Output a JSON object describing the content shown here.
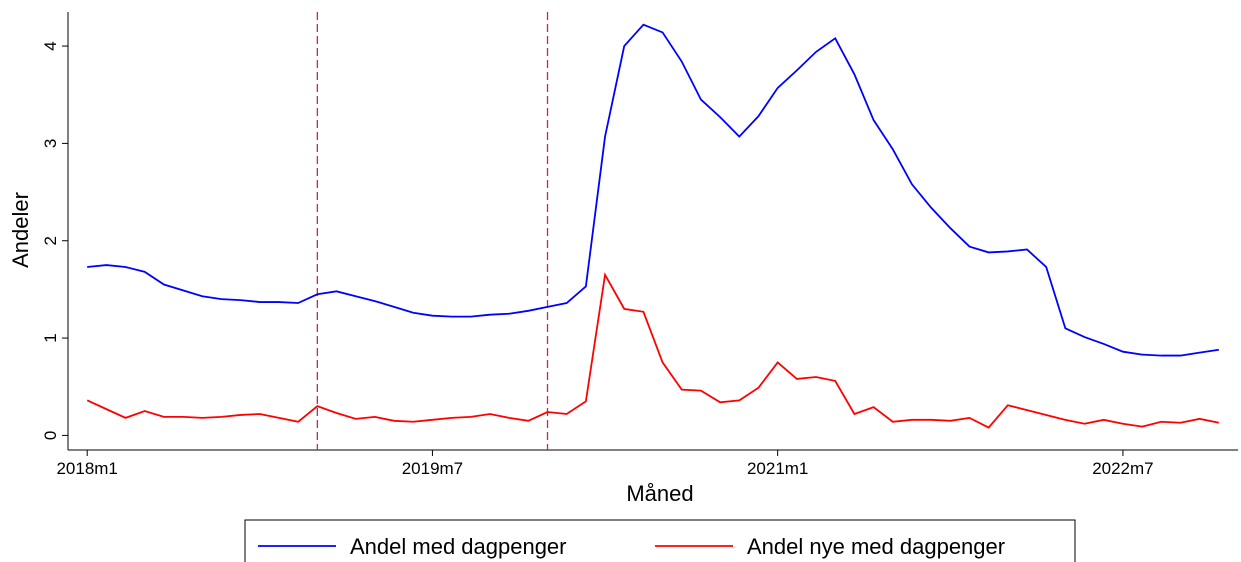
{
  "chart_data": {
    "type": "line",
    "x_label": "Måned",
    "y_label": "Andeler",
    "x": [
      696,
      697,
      698,
      699,
      700,
      701,
      702,
      703,
      704,
      705,
      706,
      707,
      708,
      709,
      710,
      711,
      712,
      713,
      714,
      715,
      716,
      717,
      718,
      719,
      720,
      721,
      722,
      723,
      724,
      725,
      726,
      727,
      728,
      729,
      730,
      731,
      732,
      733,
      734,
      735,
      736,
      737,
      738,
      739,
      740,
      741,
      742,
      743,
      744,
      745,
      746,
      747,
      748,
      749,
      750,
      751,
      752,
      753,
      754,
      755
    ],
    "series": [
      {
        "name": "Andel med dagpenger",
        "color": "#0000ff",
        "values": [
          1.73,
          1.75,
          1.73,
          1.68,
          1.55,
          1.49,
          1.43,
          1.4,
          1.39,
          1.37,
          1.37,
          1.36,
          1.45,
          1.48,
          1.43,
          1.38,
          1.32,
          1.26,
          1.23,
          1.22,
          1.22,
          1.24,
          1.25,
          1.28,
          1.32,
          1.36,
          1.53,
          3.07,
          4.0,
          4.22,
          4.14,
          3.84,
          3.45,
          3.27,
          3.07,
          3.28,
          3.57,
          3.75,
          3.94,
          4.08,
          3.71,
          3.24,
          2.94,
          2.58,
          2.34,
          2.13,
          1.94,
          1.88,
          1.89,
          1.91,
          1.73,
          1.1,
          1.01,
          0.94,
          0.86,
          0.83,
          0.82,
          0.82,
          0.85,
          0.88
        ]
      },
      {
        "name": "Andel nye med dagpenger",
        "color": "#ff0000",
        "values": [
          0.36,
          0.27,
          0.18,
          0.25,
          0.19,
          0.19,
          0.18,
          0.19,
          0.21,
          0.22,
          0.18,
          0.14,
          0.3,
          0.23,
          0.17,
          0.19,
          0.15,
          0.14,
          0.16,
          0.18,
          0.19,
          0.22,
          0.18,
          0.15,
          0.24,
          0.22,
          0.35,
          1.65,
          1.3,
          1.27,
          0.75,
          0.47,
          0.46,
          0.34,
          0.36,
          0.49,
          0.75,
          0.58,
          0.6,
          0.56,
          0.22,
          0.29,
          0.14,
          0.16,
          0.16,
          0.15,
          0.18,
          0.08,
          0.31,
          0.26,
          0.21,
          0.16,
          0.12,
          0.16,
          0.12,
          0.09,
          0.14,
          0.13,
          0.17,
          0.13
        ]
      }
    ],
    "xlim": [
      695,
      756
    ],
    "xticks": [
      {
        "value": 696,
        "label": "2018m1"
      },
      {
        "value": 714,
        "label": "2019m7"
      },
      {
        "value": 732,
        "label": "2021m1"
      },
      {
        "value": 750,
        "label": "2022m7"
      }
    ],
    "ylim": [
      -0.15,
      4.35
    ],
    "yticks": [
      0,
      1,
      2,
      3,
      4
    ],
    "vlines": [
      708,
      720
    ],
    "vline_color": "#c8285a",
    "legend": "bottom"
  }
}
